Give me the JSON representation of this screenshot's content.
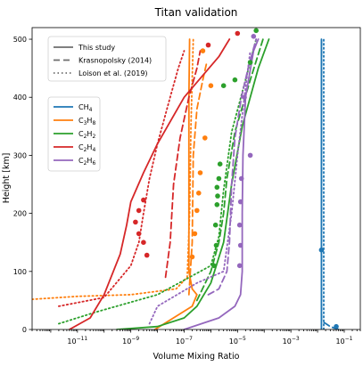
{
  "chart_data": {
    "type": "line",
    "title": "Titan validation",
    "xlabel": "Volume Mixing Ratio",
    "ylabel": "Height [km]",
    "xscale": "log",
    "xlim": [
      2e-13,
      0.4
    ],
    "ylim": [
      0,
      520
    ],
    "xticks": [
      {
        "value": 1e-11,
        "label": "10",
        "exp": "−11"
      },
      {
        "value": 1e-09,
        "label": "10",
        "exp": "−9"
      },
      {
        "value": 1e-07,
        "label": "10",
        "exp": "−7"
      },
      {
        "value": 1e-05,
        "label": "10",
        "exp": "−5"
      },
      {
        "value": 0.001,
        "label": "10",
        "exp": "−3"
      },
      {
        "value": 0.1,
        "label": "10",
        "exp": "−1"
      }
    ],
    "yticks": [
      0,
      100,
      200,
      300,
      400,
      500
    ],
    "grid": false,
    "legend_styles": {
      "position": "upper-left",
      "entries": [
        {
          "label": "This study",
          "dash": "solid"
        },
        {
          "label": "Krasnopolsky (2014)",
          "dash": "dashed"
        },
        {
          "label": "Loison et al. (2019)",
          "dash": "dotted"
        }
      ]
    },
    "legend_species": {
      "position": "upper-left",
      "entries": [
        {
          "base": "CH",
          "sub": "4",
          "color": "#1f77b4"
        },
        {
          "base": "C",
          "sub": "3",
          "mid": "H",
          "sub2": "8",
          "color": "#ff7f0e"
        },
        {
          "base": "C",
          "sub": "2",
          "mid": "H",
          "sub2": "2",
          "color": "#2ca02c"
        },
        {
          "base": "C",
          "sub": "2",
          "mid": "H",
          "sub2": "4",
          "color": "#d62728"
        },
        {
          "base": "C",
          "sub": "2",
          "mid": "H",
          "sub2": "6",
          "color": "#9467bd"
        }
      ]
    },
    "series": [
      {
        "species": "CH4",
        "style": "solid",
        "color": "#1f77b4",
        "points": [
          [
            0.014,
            0
          ],
          [
            0.014,
            100
          ],
          [
            0.014,
            300
          ],
          [
            0.014,
            500
          ]
        ]
      },
      {
        "species": "CH4",
        "style": "dashed",
        "color": "#1f77b4",
        "points": [
          [
            0.06,
            0
          ],
          [
            0.03,
            5
          ],
          [
            0.014,
            15
          ],
          [
            0.014,
            300
          ],
          [
            0.014,
            500
          ]
        ]
      },
      {
        "species": "CH4",
        "style": "dotted",
        "color": "#1f77b4",
        "points": [
          [
            0.017,
            0
          ],
          [
            0.017,
            200
          ],
          [
            0.017,
            500
          ]
        ]
      },
      {
        "species": "C3H8",
        "style": "solid",
        "color": "#ff7f0e",
        "points": [
          [
            8e-09,
            0
          ],
          [
            2e-07,
            40
          ],
          [
            3e-07,
            60
          ],
          [
            2e-07,
            70
          ],
          [
            1.5e-07,
            100
          ],
          [
            1.5e-07,
            250
          ],
          [
            1.5e-07,
            400
          ],
          [
            1.6e-07,
            500
          ]
        ]
      },
      {
        "species": "C3H8",
        "style": "dashed",
        "color": "#ff7f0e",
        "points": [
          [
            1.5e-07,
            60
          ],
          [
            2e-07,
            150
          ],
          [
            2.2e-07,
            300
          ],
          [
            3e-07,
            380
          ],
          [
            5e-07,
            430
          ],
          [
            7e-07,
            460
          ]
        ]
      },
      {
        "species": "C3H8",
        "style": "dotted",
        "color": "#ff7f0e",
        "points": [
          [
            2e-13,
            52
          ],
          [
            1e-11,
            57
          ],
          [
            1e-09,
            60
          ],
          [
            5e-08,
            70
          ],
          [
            1.3e-07,
            90
          ],
          [
            1.6e-07,
            200
          ],
          [
            1.8e-07,
            350
          ],
          [
            2.2e-07,
            500
          ]
        ]
      },
      {
        "species": "C2H2",
        "style": "solid",
        "color": "#2ca02c",
        "points": [
          [
            3e-10,
            0
          ],
          [
            1e-08,
            5
          ],
          [
            1e-07,
            20
          ],
          [
            3e-07,
            40
          ],
          [
            1e-06,
            80
          ],
          [
            3e-06,
            150
          ],
          [
            6e-06,
            250
          ],
          [
            1.5e-05,
            350
          ],
          [
            6e-05,
            450
          ],
          [
            0.00015,
            500
          ]
        ]
      },
      {
        "species": "C2H2",
        "style": "dashed",
        "color": "#2ca02c",
        "points": [
          [
            3e-07,
            50
          ],
          [
            1e-06,
            100
          ],
          [
            2e-06,
            150
          ],
          [
            3e-06,
            200
          ],
          [
            4e-06,
            260
          ],
          [
            8e-06,
            340
          ],
          [
            3e-05,
            430
          ],
          [
            9e-05,
            500
          ]
        ]
      },
      {
        "species": "C2H2",
        "style": "dotted",
        "color": "#2ca02c",
        "points": [
          [
            2e-12,
            10
          ],
          [
            5e-11,
            30
          ],
          [
            1e-08,
            60
          ],
          [
            1e-06,
            110
          ],
          [
            2e-06,
            160
          ],
          [
            3e-06,
            240
          ],
          [
            6e-06,
            340
          ],
          [
            2e-05,
            430
          ],
          [
            5e-05,
            500
          ]
        ]
      },
      {
        "species": "C2H4",
        "style": "solid",
        "color": "#d62728",
        "points": [
          [
            5e-12,
            0
          ],
          [
            3e-11,
            20
          ],
          [
            1e-10,
            60
          ],
          [
            4e-10,
            130
          ],
          [
            7e-10,
            180
          ],
          [
            1e-09,
            220
          ],
          [
            3e-09,
            270
          ],
          [
            1e-08,
            320
          ],
          [
            1e-07,
            400
          ],
          [
            2e-06,
            470
          ],
          [
            5e-06,
            500
          ]
        ]
      },
      {
        "species": "C2H4",
        "style": "dashed",
        "color": "#d62728",
        "points": [
          [
            2e-08,
            90
          ],
          [
            3e-08,
            150
          ],
          [
            4e-08,
            250
          ],
          [
            7e-08,
            330
          ],
          [
            1.5e-07,
            400
          ],
          [
            3e-07,
            450
          ],
          [
            4e-07,
            480
          ]
        ]
      },
      {
        "species": "C2H4",
        "style": "dotted",
        "color": "#d62728",
        "points": [
          [
            2e-12,
            40
          ],
          [
            1e-10,
            55
          ],
          [
            1e-09,
            110
          ],
          [
            2e-09,
            150
          ],
          [
            3e-09,
            200
          ],
          [
            5e-09,
            260
          ],
          [
            1e-08,
            320
          ],
          [
            3e-08,
            400
          ],
          [
            6e-08,
            450
          ],
          [
            1e-07,
            480
          ]
        ]
      },
      {
        "species": "C2H6",
        "style": "solid",
        "color": "#9467bd",
        "points": [
          [
            1e-07,
            0
          ],
          [
            2e-06,
            20
          ],
          [
            8e-06,
            40
          ],
          [
            1.3e-05,
            60
          ],
          [
            1.5e-05,
            100
          ],
          [
            1.5e-05,
            200
          ],
          [
            1.6e-05,
            300
          ],
          [
            2e-05,
            400
          ],
          [
            4e-05,
            480
          ],
          [
            6e-05,
            500
          ]
        ]
      },
      {
        "species": "C2H6",
        "style": "dashed",
        "color": "#9467bd",
        "points": [
          [
            8e-07,
            60
          ],
          [
            2e-06,
            70
          ],
          [
            4e-06,
            100
          ],
          [
            5e-06,
            150
          ],
          [
            6e-06,
            250
          ],
          [
            8e-06,
            330
          ],
          [
            1.4e-05,
            400
          ],
          [
            2.5e-05,
            450
          ],
          [
            5e-05,
            500
          ]
        ]
      },
      {
        "species": "C2H6",
        "style": "dotted",
        "color": "#9467bd",
        "points": [
          [
            5e-09,
            10
          ],
          [
            1e-08,
            40
          ],
          [
            3e-07,
            80
          ],
          [
            3e-06,
            100
          ],
          [
            6e-06,
            200
          ],
          [
            1e-05,
            300
          ],
          [
            1.8e-05,
            400
          ],
          [
            3e-05,
            480
          ]
        ]
      }
    ],
    "observations": [
      {
        "species": "CH4",
        "color": "#1f77b4",
        "points": [
          [
            0.05,
            5
          ],
          [
            0.014,
            137
          ]
        ]
      },
      {
        "species": "C3H8",
        "color": "#ff7f0e",
        "points": [
          [
            2e-07,
            125
          ],
          [
            2.5e-07,
            165
          ],
          [
            3e-07,
            205
          ],
          [
            3.5e-07,
            235
          ],
          [
            4e-07,
            270
          ],
          [
            6e-07,
            330
          ],
          [
            1e-06,
            420
          ],
          [
            5e-07,
            480
          ]
        ]
      },
      {
        "species": "C2H2",
        "color": "#2ca02c",
        "points": [
          [
            1.3e-06,
            110
          ],
          [
            1.6e-06,
            145
          ],
          [
            1.5e-06,
            180
          ],
          [
            1.7e-06,
            215
          ],
          [
            1.8e-06,
            230
          ],
          [
            1.7e-06,
            245
          ],
          [
            2e-06,
            260
          ],
          [
            2.2e-06,
            285
          ],
          [
            3e-06,
            420
          ],
          [
            8e-06,
            430
          ],
          [
            3e-05,
            460
          ],
          [
            5e-05,
            515
          ]
        ]
      },
      {
        "species": "C2H4",
        "color": "#d62728",
        "points": [
          [
            4e-09,
            128
          ],
          [
            3e-09,
            150
          ],
          [
            2e-09,
            165
          ],
          [
            1.5e-09,
            185
          ],
          [
            2e-09,
            205
          ],
          [
            3e-09,
            223
          ],
          [
            8e-07,
            490
          ],
          [
            1e-05,
            510
          ]
        ]
      },
      {
        "species": "C2H6",
        "color": "#9467bd",
        "points": [
          [
            1.2e-05,
            110
          ],
          [
            1.3e-05,
            145
          ],
          [
            1.2e-05,
            180
          ],
          [
            1.3e-05,
            220
          ],
          [
            1.4e-05,
            260
          ],
          [
            3e-05,
            300
          ],
          [
            1.8e-05,
            400
          ],
          [
            4e-05,
            505
          ]
        ]
      }
    ]
  }
}
